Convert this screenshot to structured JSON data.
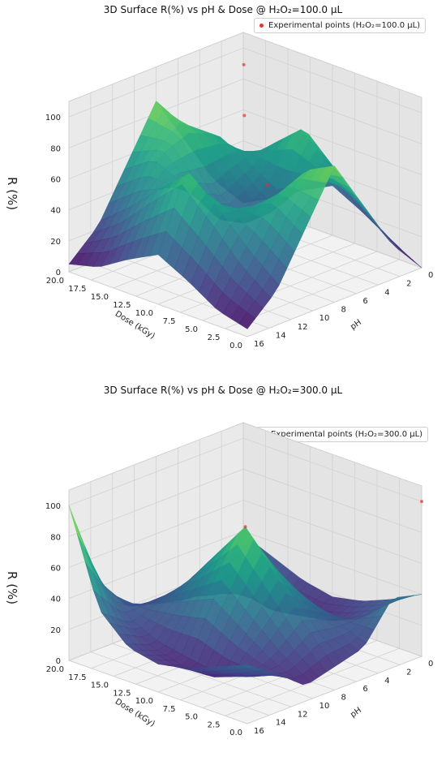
{
  "chart_data": [
    {
      "type": "surface3d",
      "title": "3D Surface R(%) vs pH & Dose @ H₂O₂=100.0 µL",
      "xlabel": "Dose (kGy)",
      "ylabel": "pH",
      "zlabel": "R (%)",
      "x_ticks": [
        "0.0",
        "2.5",
        "5.0",
        "7.5",
        "10.0",
        "12.5",
        "15.0",
        "17.5",
        "20.0"
      ],
      "y_ticks": [
        "0",
        "2",
        "4",
        "6",
        "8",
        "10",
        "12",
        "14",
        "16"
      ],
      "z_ticks": [
        "0",
        "20",
        "40",
        "60",
        "80",
        "100"
      ],
      "xlim": [
        0,
        20
      ],
      "ylim": [
        0,
        16
      ],
      "zlim": [
        0,
        110
      ],
      "legend": "Experimental points (H₂O₂=100.0 µL)",
      "legend_position": "top-right",
      "colormap": "viridis",
      "points_color": "#e8312a",
      "grid_z": [
        [
          0,
          10,
          22,
          32,
          22,
          10,
          0
        ],
        [
          22,
          38,
          60,
          80,
          60,
          38,
          22
        ],
        [
          55,
          68,
          55,
          40,
          55,
          68,
          55
        ],
        [
          88,
          78,
          45,
          30,
          45,
          78,
          88
        ],
        [
          55,
          68,
          55,
          40,
          55,
          68,
          55
        ],
        [
          22,
          38,
          60,
          80,
          60,
          38,
          22
        ],
        [
          5,
          10,
          22,
          32,
          22,
          10,
          5
        ]
      ],
      "experimental_points": [
        {
          "dose": 2.5,
          "ph": 14,
          "r": 100
        },
        {
          "dose": 5,
          "ph": 12,
          "r": 78
        },
        {
          "dose": 10,
          "ph": 6,
          "r": 60
        }
      ]
    },
    {
      "type": "surface3d",
      "title": "3D Surface R(%) vs pH & Dose @ H₂O₂=300.0 µL",
      "xlabel": "Dose (kGy)",
      "ylabel": "pH",
      "zlabel": "R (%)",
      "x_ticks": [
        "0.0",
        "2.5",
        "5.0",
        "7.5",
        "10.0",
        "12.5",
        "15.0",
        "17.5",
        "20.0"
      ],
      "y_ticks": [
        "0",
        "2",
        "4",
        "6",
        "8",
        "10",
        "12",
        "14",
        "16"
      ],
      "z_ticks": [
        "0",
        "20",
        "40",
        "60",
        "80",
        "100"
      ],
      "xlim": [
        0,
        20
      ],
      "ylim": [
        0,
        16
      ],
      "zlim": [
        0,
        110
      ],
      "legend": "Experimental points (H₂O₂=300.0 µL)",
      "legend_position": "top-right",
      "colormap": "viridis",
      "points_color": "#e8312a",
      "grid_z": [
        [
          38,
          30,
          22,
          18,
          22,
          30,
          40
        ],
        [
          25,
          15,
          8,
          10,
          15,
          25,
          45
        ],
        [
          10,
          20,
          35,
          50,
          40,
          30,
          20
        ],
        [
          15,
          35,
          60,
          85,
          60,
          35,
          15
        ],
        [
          20,
          30,
          40,
          50,
          35,
          20,
          10
        ],
        [
          45,
          25,
          15,
          10,
          8,
          15,
          25
        ],
        [
          100,
          40,
          22,
          18,
          22,
          30,
          38
        ]
      ],
      "experimental_points": [
        {
          "dose": 0,
          "ph": 0,
          "r": 100
        },
        {
          "dose": 10,
          "ph": 8,
          "r": 85
        }
      ]
    }
  ]
}
